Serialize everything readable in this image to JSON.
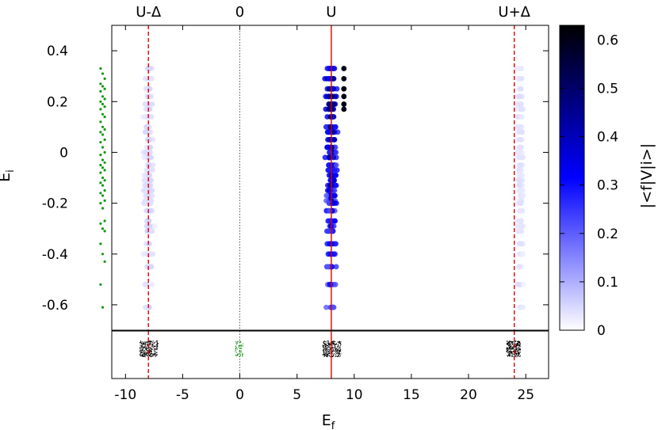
{
  "chart_data": {
    "type": "scatter",
    "xlabel": "E",
    "xlabel_sub": "f",
    "ylabel": "E",
    "ylabel_sub": "i",
    "colorbar_label": "|<f|V|i>|",
    "xlim": [
      -11.2,
      27
    ],
    "ylim": [
      -0.7,
      0.5
    ],
    "colorbar_range": [
      0,
      0.63
    ],
    "colorbar_colors": [
      "#ffffff",
      "#0000ff",
      "#000000"
    ],
    "x_ticks": [
      -10,
      -5,
      0,
      5,
      10,
      15,
      20,
      25
    ],
    "x_tick_labels": [
      "-10",
      "-5",
      "0",
      "5",
      "10",
      "15",
      "20",
      "25"
    ],
    "y_ticks": [
      0.4,
      0.2,
      0,
      -0.2,
      -0.4,
      -0.6
    ],
    "y_tick_labels": [
      "0.4",
      "0.2",
      "0",
      "-0.2",
      "-0.4",
      "-0.6"
    ],
    "colorbar_ticks": [
      0,
      0.1,
      0.2,
      0.3,
      0.4,
      0.5,
      0.6
    ],
    "colorbar_tick_labels": [
      "0",
      "0.1",
      "0.2",
      "0.3",
      "0.4",
      "0.5",
      "0.6"
    ],
    "reference_lines": [
      {
        "label": "U-Δ",
        "x": -8,
        "color": "#dd0000",
        "style": "dashed"
      },
      {
        "label": "0",
        "x": 0,
        "color": "#555555",
        "style": "dotted"
      },
      {
        "label": "U",
        "x": 8,
        "color": "#dd0000",
        "style": "solid"
      },
      {
        "label": "U+Δ",
        "x": 24,
        "color": "#dd0000",
        "style": "dashed"
      }
    ],
    "initial_state_energies": {
      "x": -12,
      "color": "#119911",
      "y": [
        0.33,
        0.31,
        0.29,
        0.27,
        0.26,
        0.25,
        0.24,
        0.22,
        0.21,
        0.2,
        0.19,
        0.18,
        0.17,
        0.15,
        0.14,
        0.12,
        0.1,
        0.09,
        0.08,
        0.07,
        0.05,
        0.04,
        0.02,
        0.0,
        -0.01,
        -0.03,
        -0.04,
        -0.05,
        -0.06,
        -0.07,
        -0.08,
        -0.1,
        -0.11,
        -0.12,
        -0.13,
        -0.15,
        -0.16,
        -0.17,
        -0.19,
        -0.2,
        -0.22,
        -0.27,
        -0.28,
        -0.3,
        -0.31,
        -0.36,
        -0.4,
        -0.43,
        -0.52,
        -0.61
      ]
    },
    "energy_levels": [
      0.33,
      0.29,
      0.25,
      0.22,
      0.19,
      0.17,
      0.14,
      0.1,
      0.08,
      0.05,
      0.02,
      0.0,
      -0.02,
      -0.05,
      -0.07,
      -0.09,
      -0.11,
      -0.13,
      -0.15,
      -0.17,
      -0.19,
      -0.2,
      -0.23,
      -0.27,
      -0.29,
      -0.31,
      -0.36,
      -0.4,
      -0.45,
      -0.52,
      -0.61
    ],
    "transition_clusters": [
      {
        "center": -8,
        "spread": 0.9,
        "max_weight": 0.09
      },
      {
        "center": 8,
        "spread": 0.95,
        "max_weight": 0.63
      },
      {
        "center": 24.5,
        "spread": 0.55,
        "max_weight": 0.07
      }
    ],
    "final_state_clusters": [
      {
        "center": -8,
        "spread": 0.8,
        "color": "#000000"
      },
      {
        "center": -0.1,
        "spread": 0.35,
        "color": "#119911"
      },
      {
        "center": 8,
        "spread": 0.8,
        "color": "#000000"
      },
      {
        "center": 23.9,
        "spread": 0.6,
        "color": "#000000"
      }
    ]
  }
}
